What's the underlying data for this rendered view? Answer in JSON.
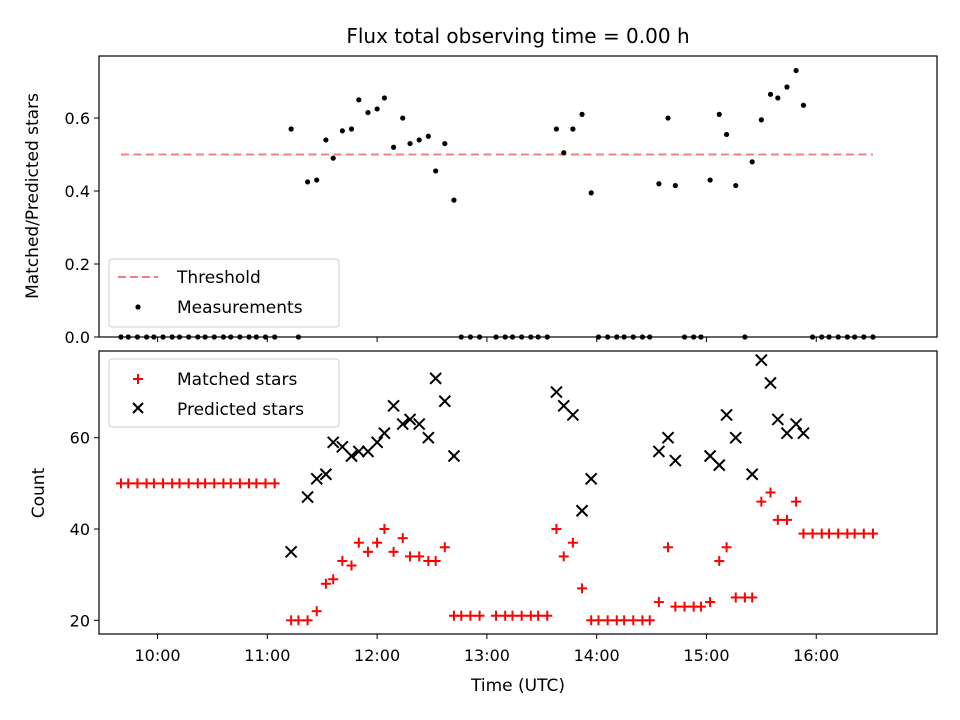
{
  "chart_data": [
    {
      "type": "scatter",
      "title": "Flux total observing time = 0.00 h",
      "xlabel": "",
      "ylabel": "Matched/Predicted stars",
      "xlim": [
        "09:28",
        "17:06"
      ],
      "ylim": [
        0,
        0.77
      ],
      "yticks": [
        "0.0",
        "0.2",
        "0.4",
        "0.6"
      ],
      "yticks_values": [
        0,
        0.2,
        0.4,
        0.6
      ],
      "xticks": [
        "10:00",
        "11:00",
        "12:00",
        "13:00",
        "14:00",
        "15:00",
        "16:00"
      ],
      "legend": {
        "placement": "lower-left",
        "entries": [
          "Threshold",
          "Measurements"
        ]
      },
      "threshold": {
        "name": "Threshold",
        "value": 0.5,
        "x_start": "09:40",
        "x_end": "16:31",
        "color": "#f08080"
      },
      "series": [
        {
          "name": "Measurements",
          "color": "#000000",
          "points": [
            [
              "09:40",
              0
            ],
            [
              "09:44",
              0
            ],
            [
              "09:49",
              0
            ],
            [
              "09:54",
              0
            ],
            [
              "09:58",
              0
            ],
            [
              "10:03",
              0
            ],
            [
              "10:08",
              0
            ],
            [
              "10:12",
              0
            ],
            [
              "10:17",
              0
            ],
            [
              "10:22",
              0
            ],
            [
              "10:26",
              0
            ],
            [
              "10:31",
              0
            ],
            [
              "10:36",
              0
            ],
            [
              "10:40",
              0
            ],
            [
              "10:45",
              0
            ],
            [
              "10:50",
              0
            ],
            [
              "10:54",
              0
            ],
            [
              "10:59",
              0
            ],
            [
              "11:04",
              0
            ],
            [
              "11:13",
              0.57
            ],
            [
              "11:17",
              0
            ],
            [
              "11:22",
              0.425
            ],
            [
              "11:27",
              0.43
            ],
            [
              "11:32",
              0.54
            ],
            [
              "11:36",
              0.49
            ],
            [
              "11:41",
              0.565
            ],
            [
              "11:46",
              0.57
            ],
            [
              "11:50",
              0.65
            ],
            [
              "11:55",
              0.615
            ],
            [
              "12:00",
              0.625
            ],
            [
              "12:04",
              0.655
            ],
            [
              "12:09",
              0.52
            ],
            [
              "12:14",
              0.6
            ],
            [
              "12:18",
              0.53
            ],
            [
              "12:23",
              0.54
            ],
            [
              "12:28",
              0.55
            ],
            [
              "12:32",
              0.455
            ],
            [
              "12:37",
              0.53
            ],
            [
              "12:42",
              0.375
            ],
            [
              "12:46",
              0
            ],
            [
              "12:51",
              0
            ],
            [
              "12:56",
              0
            ],
            [
              "13:05",
              0
            ],
            [
              "13:10",
              0
            ],
            [
              "13:14",
              0
            ],
            [
              "13:19",
              0
            ],
            [
              "13:24",
              0
            ],
            [
              "13:28",
              0
            ],
            [
              "13:33",
              0
            ],
            [
              "13:38",
              0.57
            ],
            [
              "13:42",
              0.505
            ],
            [
              "13:47",
              0.57
            ],
            [
              "13:52",
              0.61
            ],
            [
              "13:57",
              0.395
            ],
            [
              "14:01",
              0
            ],
            [
              "14:06",
              0
            ],
            [
              "14:11",
              0
            ],
            [
              "14:15",
              0
            ],
            [
              "14:20",
              0
            ],
            [
              "14:25",
              0
            ],
            [
              "14:29",
              0
            ],
            [
              "14:34",
              0.42
            ],
            [
              "14:39",
              0.6
            ],
            [
              "14:43",
              0.415
            ],
            [
              "14:48",
              0
            ],
            [
              "14:53",
              0
            ],
            [
              "14:57",
              0
            ],
            [
              "15:02",
              0.43
            ],
            [
              "15:07",
              0.61
            ],
            [
              "15:11",
              0.555
            ],
            [
              "15:16",
              0.415
            ],
            [
              "15:21",
              0
            ],
            [
              "15:25",
              0.48
            ],
            [
              "15:30",
              0.595
            ],
            [
              "15:35",
              0.665
            ],
            [
              "15:39",
              0.655
            ],
            [
              "15:44",
              0.685
            ],
            [
              "15:49",
              0.73
            ],
            [
              "15:53",
              0.635
            ],
            [
              "15:58",
              0
            ],
            [
              "16:03",
              0
            ],
            [
              "16:07",
              0
            ],
            [
              "16:12",
              0
            ],
            [
              "16:17",
              0
            ],
            [
              "16:21",
              0
            ],
            [
              "16:26",
              0
            ],
            [
              "16:31",
              0
            ]
          ]
        }
      ]
    },
    {
      "type": "scatter",
      "title": "",
      "xlabel": "Time (UTC)",
      "ylabel": "Count",
      "xlim": [
        "09:28",
        "17:06"
      ],
      "ylim": [
        17,
        79
      ],
      "yticks": [
        "20",
        "40",
        "60"
      ],
      "yticks_values": [
        20,
        40,
        60
      ],
      "xticks": [
        "10:00",
        "11:00",
        "12:00",
        "13:00",
        "14:00",
        "15:00",
        "16:00"
      ],
      "legend": {
        "placement": "upper-left",
        "entries": [
          "Matched stars",
          "Predicted stars"
        ]
      },
      "series": [
        {
          "name": "Matched stars",
          "marker": "plus",
          "color": "#ff0000",
          "points": [
            [
              "09:40",
              50
            ],
            [
              "09:44",
              50
            ],
            [
              "09:49",
              50
            ],
            [
              "09:54",
              50
            ],
            [
              "09:58",
              50
            ],
            [
              "10:03",
              50
            ],
            [
              "10:08",
              50
            ],
            [
              "10:12",
              50
            ],
            [
              "10:17",
              50
            ],
            [
              "10:22",
              50
            ],
            [
              "10:26",
              50
            ],
            [
              "10:31",
              50
            ],
            [
              "10:36",
              50
            ],
            [
              "10:40",
              50
            ],
            [
              "10:45",
              50
            ],
            [
              "10:50",
              50
            ],
            [
              "10:54",
              50
            ],
            [
              "10:59",
              50
            ],
            [
              "11:04",
              50
            ],
            [
              "11:13",
              20
            ],
            [
              "11:17",
              20
            ],
            [
              "11:22",
              20
            ],
            [
              "11:27",
              22
            ],
            [
              "11:32",
              28
            ],
            [
              "11:36",
              29
            ],
            [
              "11:41",
              33
            ],
            [
              "11:46",
              32
            ],
            [
              "11:50",
              37
            ],
            [
              "11:55",
              35
            ],
            [
              "12:00",
              37
            ],
            [
              "12:04",
              40
            ],
            [
              "12:09",
              35
            ],
            [
              "12:14",
              38
            ],
            [
              "12:18",
              34
            ],
            [
              "12:23",
              34
            ],
            [
              "12:28",
              33
            ],
            [
              "12:32",
              33
            ],
            [
              "12:37",
              36
            ],
            [
              "12:42",
              21
            ],
            [
              "12:46",
              21
            ],
            [
              "12:51",
              21
            ],
            [
              "12:56",
              21
            ],
            [
              "13:05",
              21
            ],
            [
              "13:10",
              21
            ],
            [
              "13:14",
              21
            ],
            [
              "13:19",
              21
            ],
            [
              "13:24",
              21
            ],
            [
              "13:28",
              21
            ],
            [
              "13:33",
              21
            ],
            [
              "13:38",
              40
            ],
            [
              "13:42",
              34
            ],
            [
              "13:47",
              37
            ],
            [
              "13:52",
              27
            ],
            [
              "13:57",
              20
            ],
            [
              "14:01",
              20
            ],
            [
              "14:06",
              20
            ],
            [
              "14:11",
              20
            ],
            [
              "14:15",
              20
            ],
            [
              "14:20",
              20
            ],
            [
              "14:25",
              20
            ],
            [
              "14:29",
              20
            ],
            [
              "14:34",
              24
            ],
            [
              "14:39",
              36
            ],
            [
              "14:43",
              23
            ],
            [
              "14:48",
              23
            ],
            [
              "14:53",
              23
            ],
            [
              "14:57",
              23
            ],
            [
              "15:02",
              24
            ],
            [
              "15:07",
              33
            ],
            [
              "15:11",
              36
            ],
            [
              "15:16",
              25
            ],
            [
              "15:21",
              25
            ],
            [
              "15:25",
              25
            ],
            [
              "15:30",
              46
            ],
            [
              "15:35",
              48
            ],
            [
              "15:39",
              42
            ],
            [
              "15:44",
              42
            ],
            [
              "15:49",
              46
            ],
            [
              "15:53",
              39
            ],
            [
              "15:58",
              39
            ],
            [
              "16:03",
              39
            ],
            [
              "16:07",
              39
            ],
            [
              "16:12",
              39
            ],
            [
              "16:17",
              39
            ],
            [
              "16:21",
              39
            ],
            [
              "16:26",
              39
            ],
            [
              "16:31",
              39
            ]
          ]
        },
        {
          "name": "Predicted stars",
          "marker": "x",
          "color": "#000000",
          "points": [
            [
              "11:13",
              35
            ],
            [
              "11:22",
              47
            ],
            [
              "11:27",
              51
            ],
            [
              "11:32",
              52
            ],
            [
              "11:36",
              59
            ],
            [
              "11:41",
              58
            ],
            [
              "11:46",
              56
            ],
            [
              "11:50",
              57
            ],
            [
              "11:55",
              57
            ],
            [
              "12:00",
              59
            ],
            [
              "12:04",
              61
            ],
            [
              "12:09",
              67
            ],
            [
              "12:14",
              63
            ],
            [
              "12:18",
              64
            ],
            [
              "12:23",
              63
            ],
            [
              "12:28",
              60
            ],
            [
              "12:32",
              73
            ],
            [
              "12:37",
              68
            ],
            [
              "12:42",
              56
            ],
            [
              "13:38",
              70
            ],
            [
              "13:42",
              67
            ],
            [
              "13:47",
              65
            ],
            [
              "13:52",
              44
            ],
            [
              "13:57",
              51
            ],
            [
              "14:34",
              57
            ],
            [
              "14:39",
              60
            ],
            [
              "14:43",
              55
            ],
            [
              "15:02",
              56
            ],
            [
              "15:07",
              54
            ],
            [
              "15:11",
              65
            ],
            [
              "15:16",
              60
            ],
            [
              "15:25",
              52
            ],
            [
              "15:30",
              77
            ],
            [
              "15:35",
              72
            ],
            [
              "15:39",
              64
            ],
            [
              "15:44",
              61
            ],
            [
              "15:49",
              63
            ],
            [
              "15:53",
              61
            ]
          ]
        }
      ]
    }
  ]
}
